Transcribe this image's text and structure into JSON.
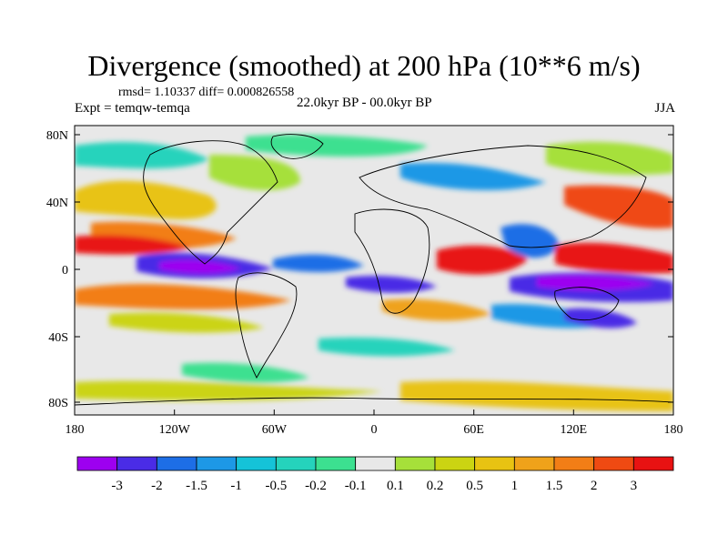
{
  "title": "Divergence (smoothed) at 200 hPa (10**6 m/s)",
  "stats_line": "rmsd= 1.10337 diff= 0.000826558",
  "experiment_line": "Expt = temqw-temqa",
  "period_line": "22.0kyr BP - 00.0kyr BP",
  "season": "JJA",
  "lat_ticks": [
    "80N",
    "40N",
    "0",
    "40S",
    "80S"
  ],
  "lon_ticks": [
    "180",
    "120W",
    "60W",
    "0",
    "60E",
    "120E",
    "180"
  ],
  "colorbar": {
    "colors": [
      "#9d00f0",
      "#4a2ce6",
      "#1d6ee6",
      "#1d98e6",
      "#15c3d8",
      "#25d3bc",
      "#3ce090",
      "#e8e8e8",
      "#a6e03a",
      "#cbd412",
      "#e8c312",
      "#efa21a",
      "#f27e16",
      "#ef4a12",
      "#e81212"
    ],
    "labels": [
      "-3",
      "-2",
      "-1.5",
      "-1",
      "-0.5",
      "-0.2",
      "-0.1",
      "0.1",
      "0.2",
      "0.5",
      "1",
      "1.5",
      "2",
      "3"
    ]
  },
  "colors": {
    "strong_negative": "#7a14ee",
    "negative": "#1d98e6",
    "weak_negative": "#3ce090",
    "neutral": "#e8e8e8",
    "weak_positive": "#a6e03a",
    "positive": "#e8c312",
    "strong_positive": "#e81212"
  }
}
